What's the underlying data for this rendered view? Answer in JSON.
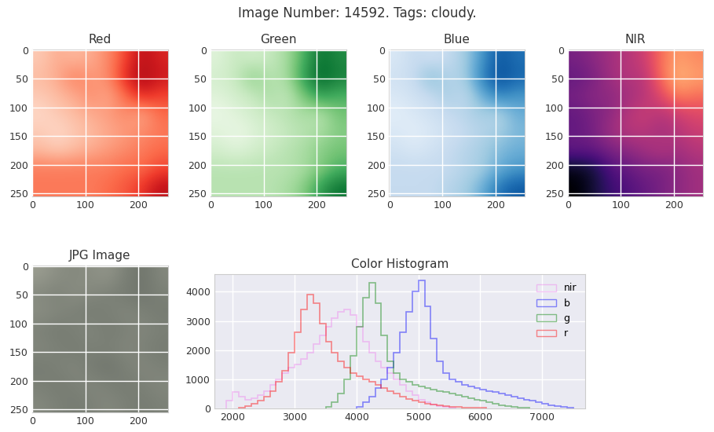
{
  "title": "Image Number: 14592. Tags: cloudy.",
  "chart_data": [
    {
      "type": "heatmap",
      "title": "Red",
      "color": "Reds",
      "zlim": [
        0,
        1
      ],
      "xlim": [
        -0.5,
        255.5
      ],
      "ylim": [
        255.5,
        -0.5
      ],
      "xticks": [
        0,
        100,
        200
      ],
      "yticks": [
        0,
        50,
        100,
        150,
        200,
        250
      ],
      "grid": true,
      "cells": [
        [
          0.2,
          0.3,
          0.25,
          0.3,
          0.4,
          0.6,
          0.8,
          0.7
        ],
        [
          0.25,
          0.3,
          0.45,
          0.35,
          0.4,
          0.7,
          0.85,
          0.75
        ],
        [
          0.2,
          0.25,
          0.3,
          0.4,
          0.3,
          0.5,
          0.7,
          0.6
        ],
        [
          0.15,
          0.2,
          0.25,
          0.3,
          0.35,
          0.4,
          0.3,
          0.5
        ],
        [
          0.2,
          0.15,
          0.2,
          0.25,
          0.3,
          0.35,
          0.4,
          0.45
        ],
        [
          0.25,
          0.2,
          0.25,
          0.3,
          0.35,
          0.4,
          0.45,
          0.5
        ],
        [
          0.45,
          0.45,
          0.45,
          0.45,
          0.45,
          0.5,
          0.5,
          0.6
        ],
        [
          0.45,
          0.45,
          0.45,
          0.45,
          0.5,
          0.55,
          0.65,
          0.8
        ]
      ]
    },
    {
      "type": "heatmap",
      "title": "Green",
      "color": "Greens",
      "zlim": [
        0,
        1
      ],
      "xlim": [
        -0.5,
        255.5
      ],
      "ylim": [
        255.5,
        -0.5
      ],
      "xticks": [
        0,
        100,
        200
      ],
      "yticks": [
        0,
        50,
        100,
        150,
        200,
        250
      ],
      "grid": true,
      "cells": [
        [
          0.15,
          0.25,
          0.2,
          0.25,
          0.35,
          0.6,
          0.85,
          0.75
        ],
        [
          0.2,
          0.25,
          0.45,
          0.3,
          0.35,
          0.7,
          0.9,
          0.8
        ],
        [
          0.15,
          0.2,
          0.25,
          0.35,
          0.25,
          0.5,
          0.7,
          0.6
        ],
        [
          0.1,
          0.15,
          0.2,
          0.25,
          0.3,
          0.35,
          0.3,
          0.5
        ],
        [
          0.15,
          0.1,
          0.15,
          0.2,
          0.25,
          0.3,
          0.35,
          0.45
        ],
        [
          0.2,
          0.15,
          0.2,
          0.25,
          0.3,
          0.35,
          0.45,
          0.5
        ],
        [
          0.3,
          0.3,
          0.3,
          0.3,
          0.3,
          0.35,
          0.45,
          0.6
        ],
        [
          0.3,
          0.3,
          0.3,
          0.3,
          0.35,
          0.45,
          0.7,
          0.85
        ]
      ]
    },
    {
      "type": "heatmap",
      "title": "Blue",
      "color": "Blues",
      "zlim": [
        0,
        1
      ],
      "xlim": [
        -0.5,
        255.5
      ],
      "ylim": [
        255.5,
        -0.5
      ],
      "xticks": [
        0,
        100,
        200
      ],
      "yticks": [
        0,
        50,
        100,
        150,
        200,
        250
      ],
      "grid": true,
      "cells": [
        [
          0.15,
          0.25,
          0.2,
          0.25,
          0.35,
          0.6,
          0.85,
          0.75
        ],
        [
          0.2,
          0.25,
          0.45,
          0.3,
          0.35,
          0.7,
          0.9,
          0.8
        ],
        [
          0.15,
          0.2,
          0.25,
          0.35,
          0.25,
          0.5,
          0.7,
          0.6
        ],
        [
          0.1,
          0.15,
          0.2,
          0.25,
          0.3,
          0.35,
          0.3,
          0.5
        ],
        [
          0.15,
          0.1,
          0.15,
          0.2,
          0.25,
          0.3,
          0.35,
          0.45
        ],
        [
          0.2,
          0.15,
          0.2,
          0.25,
          0.3,
          0.35,
          0.45,
          0.5
        ],
        [
          0.25,
          0.25,
          0.25,
          0.25,
          0.3,
          0.35,
          0.5,
          0.6
        ],
        [
          0.25,
          0.25,
          0.25,
          0.3,
          0.35,
          0.5,
          0.75,
          0.85
        ]
      ]
    },
    {
      "type": "heatmap",
      "title": "NIR",
      "color": "magma",
      "zlim": [
        0,
        1
      ],
      "xlim": [
        -0.5,
        255.5
      ],
      "ylim": [
        255.5,
        -0.5
      ],
      "xticks": [
        0,
        100,
        200
      ],
      "yticks": [
        0,
        50,
        100,
        150,
        200,
        250
      ],
      "grid": true,
      "cells": [
        [
          0.35,
          0.4,
          0.45,
          0.5,
          0.55,
          0.7,
          0.8,
          0.75
        ],
        [
          0.3,
          0.35,
          0.45,
          0.5,
          0.5,
          0.7,
          0.85,
          0.8
        ],
        [
          0.35,
          0.4,
          0.4,
          0.45,
          0.5,
          0.6,
          0.75,
          0.7
        ],
        [
          0.3,
          0.35,
          0.4,
          0.5,
          0.55,
          0.5,
          0.55,
          0.6
        ],
        [
          0.3,
          0.35,
          0.45,
          0.5,
          0.5,
          0.45,
          0.5,
          0.55
        ],
        [
          0.3,
          0.3,
          0.35,
          0.4,
          0.45,
          0.5,
          0.45,
          0.5
        ],
        [
          0.05,
          0.1,
          0.25,
          0.3,
          0.35,
          0.35,
          0.4,
          0.45
        ],
        [
          0.0,
          0.1,
          0.2,
          0.25,
          0.3,
          0.35,
          0.4,
          0.45
        ]
      ]
    },
    {
      "type": "image",
      "title": "JPG Image",
      "zlim": [
        0,
        1
      ],
      "xlim": [
        -0.5,
        255.5
      ],
      "ylim": [
        255.5,
        -0.5
      ],
      "xticks": [
        0,
        100,
        200
      ],
      "yticks": [
        0,
        50,
        100,
        150,
        200,
        250
      ],
      "grid": true,
      "cells": [
        [
          0.7,
          0.6,
          0.55,
          0.6,
          0.65,
          0.5,
          0.4,
          0.55
        ],
        [
          0.55,
          0.5,
          0.6,
          0.55,
          0.5,
          0.45,
          0.4,
          0.5
        ],
        [
          0.6,
          0.55,
          0.5,
          0.45,
          0.5,
          0.55,
          0.5,
          0.45
        ],
        [
          0.5,
          0.45,
          0.5,
          0.55,
          0.45,
          0.5,
          0.55,
          0.5
        ],
        [
          0.55,
          0.5,
          0.45,
          0.5,
          0.5,
          0.55,
          0.5,
          0.45
        ],
        [
          0.45,
          0.5,
          0.55,
          0.45,
          0.4,
          0.5,
          0.55,
          0.5
        ],
        [
          0.5,
          0.45,
          0.5,
          0.55,
          0.5,
          0.45,
          0.5,
          0.55
        ],
        [
          0.55,
          0.5,
          0.45,
          0.5,
          0.55,
          0.5,
          0.45,
          0.5
        ]
      ]
    },
    {
      "type": "histogram",
      "title": "Color Histogram",
      "xlim": [
        1700,
        7700
      ],
      "ylim": [
        0,
        4600
      ],
      "xticks": [
        2000,
        3000,
        4000,
        5000,
        6000,
        7000
      ],
      "yticks": [
        0,
        1000,
        2000,
        3000,
        4000
      ],
      "grid": true,
      "legend": "upper right",
      "series": [
        {
          "name": "nir",
          "color": "#ee82ee",
          "bins": [
            1900,
            2000,
            2100,
            2200,
            2300,
            2400,
            2500,
            2600,
            2700,
            2800,
            2900,
            3000,
            3100,
            3200,
            3300,
            3400,
            3500,
            3600,
            3700,
            3800,
            3900,
            4000,
            4100,
            4200,
            4300,
            4400,
            4500,
            4600,
            4700,
            4800,
            4900,
            5000,
            5100,
            5200,
            5300,
            5400,
            5500,
            5600
          ],
          "counts": [
            250,
            550,
            400,
            300,
            350,
            450,
            600,
            800,
            1000,
            1200,
            1400,
            1500,
            1700,
            1900,
            2200,
            2500,
            2800,
            3100,
            3300,
            3400,
            3200,
            2800,
            2300,
            1900,
            1600,
            1400,
            1200,
            1000,
            800,
            600,
            450,
            300,
            200,
            130,
            80,
            40,
            20
          ]
        },
        {
          "name": "b",
          "color": "#0000ff",
          "bins": [
            4000,
            4100,
            4200,
            4300,
            4400,
            4500,
            4600,
            4700,
            4800,
            4900,
            5000,
            5100,
            5200,
            5300,
            5400,
            5500,
            5600,
            5700,
            5800,
            5900,
            6000,
            6100,
            6200,
            6300,
            6400,
            6500,
            6600,
            6700,
            6800,
            6900,
            7000,
            7100,
            7200,
            7300,
            7400,
            7500
          ],
          "counts": [
            50,
            200,
            400,
            700,
            1000,
            1400,
            1900,
            2600,
            3300,
            4000,
            4400,
            3500,
            2400,
            1600,
            1200,
            1000,
            900,
            800,
            750,
            700,
            650,
            600,
            550,
            500,
            450,
            400,
            350,
            300,
            250,
            200,
            150,
            100,
            70,
            40,
            20
          ]
        },
        {
          "name": "g",
          "color": "#008000",
          "bins": [
            3500,
            3600,
            3700,
            3800,
            3900,
            4000,
            4100,
            4200,
            4300,
            4400,
            4500,
            4600,
            4700,
            4800,
            4900,
            5000,
            5100,
            5200,
            5300,
            5400,
            5500,
            5600,
            5700,
            5800,
            5900,
            6000,
            6100,
            6200,
            6300,
            6400,
            6500,
            6600,
            6700,
            6800
          ],
          "counts": [
            50,
            200,
            500,
            1000,
            1800,
            2800,
            3800,
            4300,
            3600,
            2500,
            1600,
            1200,
            1000,
            900,
            800,
            750,
            700,
            650,
            600,
            550,
            500,
            450,
            400,
            350,
            300,
            250,
            200,
            150,
            100,
            70,
            40,
            20,
            10
          ]
        },
        {
          "name": "r",
          "color": "#ff0000",
          "bins": [
            2100,
            2200,
            2300,
            2400,
            2500,
            2600,
            2700,
            2800,
            2900,
            3000,
            3100,
            3200,
            3300,
            3400,
            3500,
            3600,
            3700,
            3800,
            3900,
            4000,
            4100,
            4200,
            4300,
            4400,
            4500,
            4600,
            4700,
            4800,
            4900,
            5000,
            5100,
            5200,
            5300,
            5400,
            5500,
            5600,
            5700,
            5800,
            5900,
            6000,
            6100
          ],
          "counts": [
            30,
            80,
            150,
            250,
            400,
            600,
            900,
            1300,
            1900,
            2600,
            3400,
            3900,
            3600,
            2900,
            2300,
            1900,
            1600,
            1400,
            1200,
            1100,
            1000,
            900,
            800,
            700,
            600,
            500,
            400,
            320,
            260,
            200,
            160,
            120,
            100,
            80,
            60,
            40,
            30,
            20,
            15,
            10
          ]
        }
      ]
    }
  ]
}
